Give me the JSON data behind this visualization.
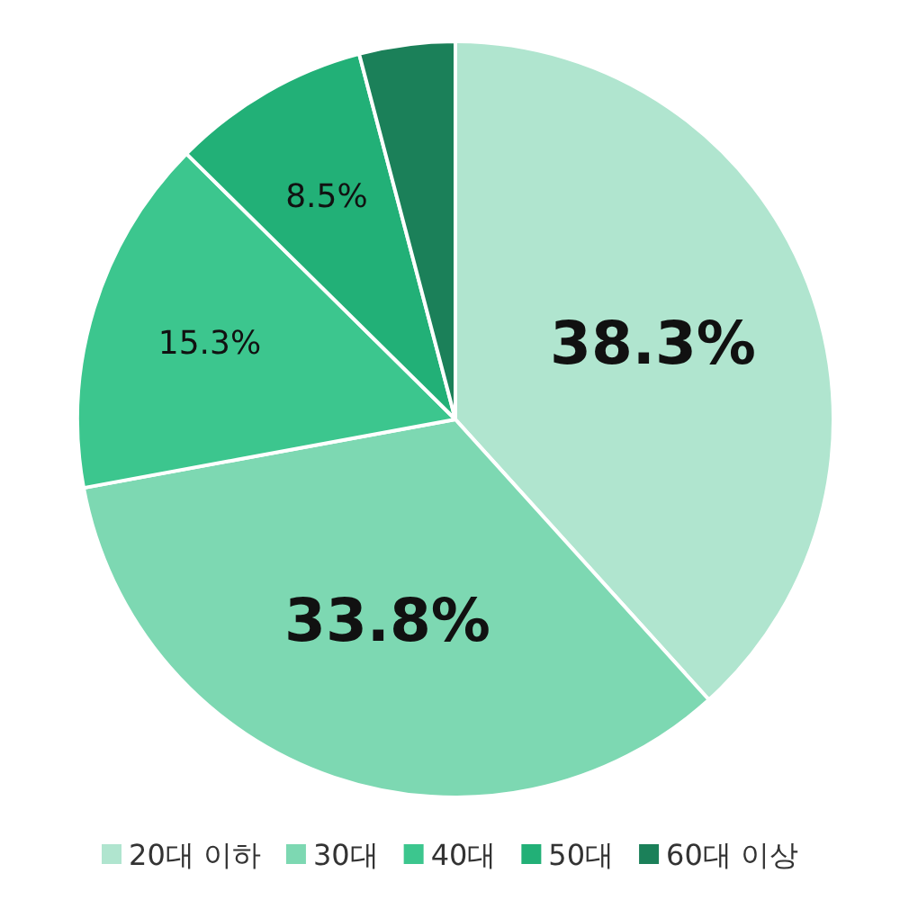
{
  "chart_data": {
    "type": "pie",
    "categories": [
      "20대 이하",
      "30대",
      "40대",
      "50대",
      "60대 이상"
    ],
    "values": [
      38.3,
      33.8,
      15.3,
      8.5,
      4.1
    ],
    "colors": [
      "#b0e5cf",
      "#7dd8b2",
      "#3cc68e",
      "#22b077",
      "#1b8059"
    ],
    "value_labels": [
      "38.3%",
      "33.8%",
      "15.3%",
      "8.5%",
      null
    ],
    "legend": "bottom"
  }
}
